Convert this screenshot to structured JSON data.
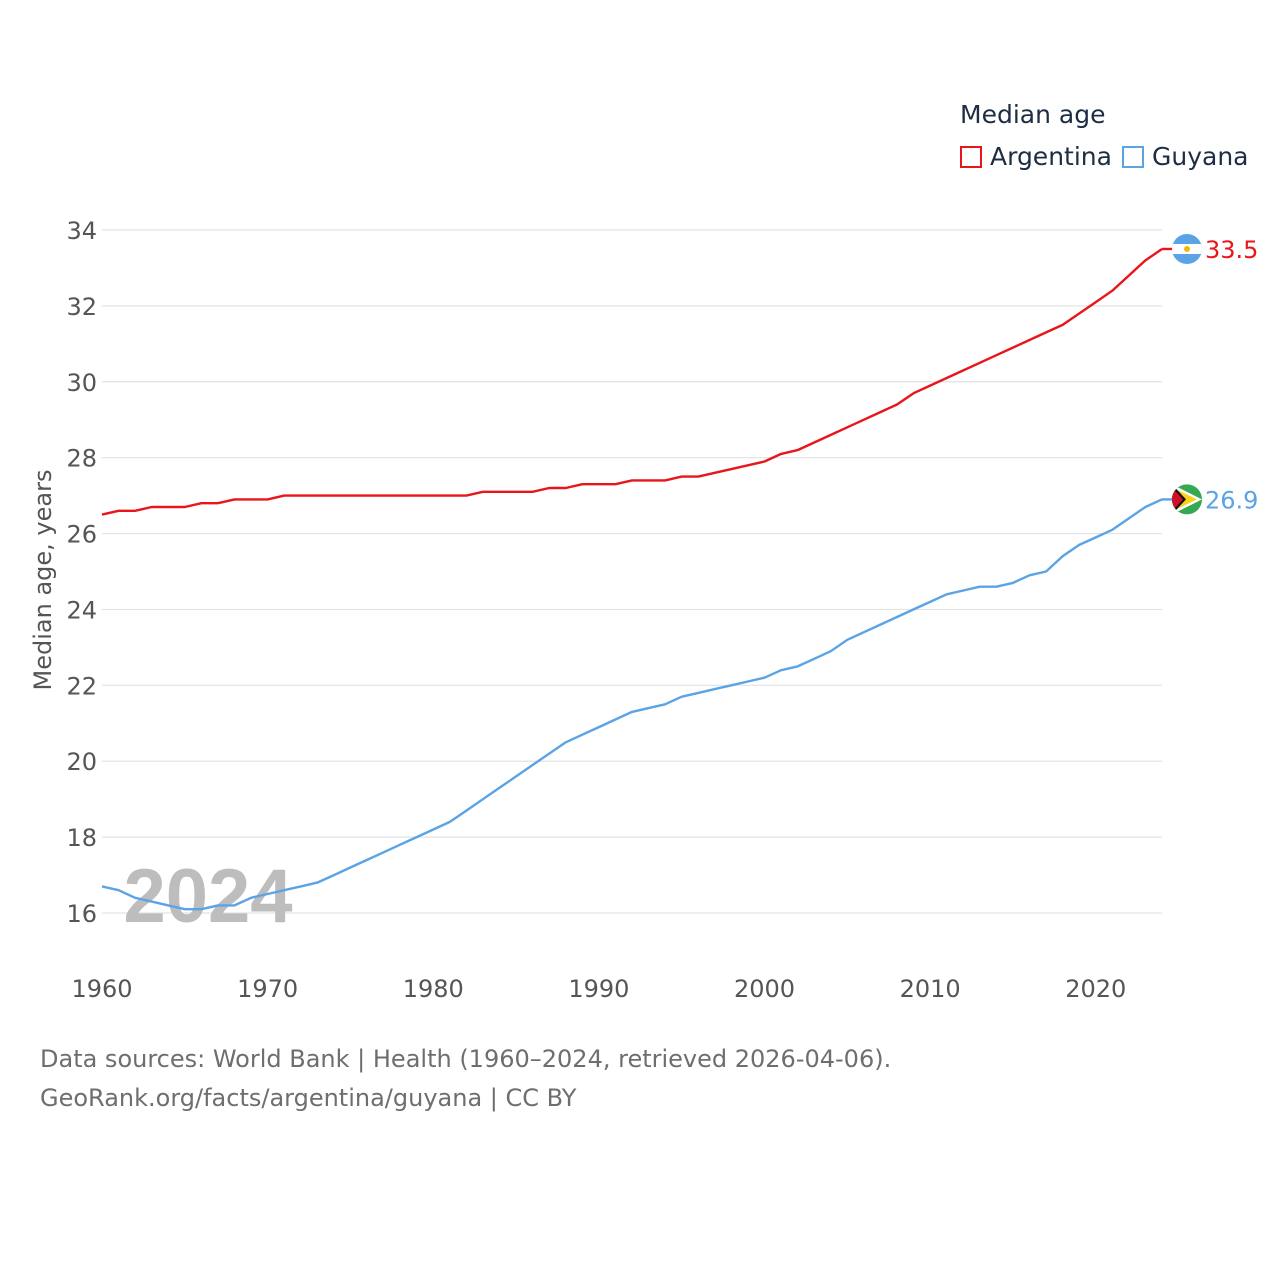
{
  "legend": {
    "title": "Median age",
    "items": [
      {
        "label": "Argentina",
        "color": "#e8151b"
      },
      {
        "label": "Guyana",
        "color": "#5aa4e6"
      }
    ]
  },
  "footer": {
    "line1": "Data sources: World Bank | Health (1960–2024, retrieved 2026-04-06).",
    "line2": "GeoRank.org/facts/argentina/guyana | CC BY"
  },
  "chart_data": {
    "type": "line",
    "title": "Median age",
    "xlabel": "",
    "ylabel": "Median age, years",
    "xlim": [
      1960,
      2024
    ],
    "ylim": [
      15,
      34.5
    ],
    "xticks": [
      1960,
      1970,
      1980,
      1990,
      2000,
      2010,
      2020
    ],
    "yticks": [
      16,
      18,
      20,
      22,
      24,
      26,
      28,
      30,
      32,
      34
    ],
    "year_label": "2024",
    "x": [
      1960,
      1961,
      1962,
      1963,
      1964,
      1965,
      1966,
      1967,
      1968,
      1969,
      1970,
      1971,
      1972,
      1973,
      1974,
      1975,
      1976,
      1977,
      1978,
      1979,
      1980,
      1981,
      1982,
      1983,
      1984,
      1985,
      1986,
      1987,
      1988,
      1989,
      1990,
      1991,
      1992,
      1993,
      1994,
      1995,
      1996,
      1997,
      1998,
      1999,
      2000,
      2001,
      2002,
      2003,
      2004,
      2005,
      2006,
      2007,
      2008,
      2009,
      2010,
      2011,
      2012,
      2013,
      2014,
      2015,
      2016,
      2017,
      2018,
      2019,
      2020,
      2021,
      2022,
      2023,
      2024
    ],
    "series": [
      {
        "name": "Argentina",
        "color": "#e8151b",
        "end_label": "33.5",
        "flag": "argentina-flag",
        "values": [
          26.5,
          26.6,
          26.6,
          26.7,
          26.7,
          26.7,
          26.8,
          26.8,
          26.9,
          26.9,
          26.9,
          27.0,
          27.0,
          27.0,
          27.0,
          27.0,
          27.0,
          27.0,
          27.0,
          27.0,
          27.0,
          27.0,
          27.0,
          27.1,
          27.1,
          27.1,
          27.1,
          27.2,
          27.2,
          27.3,
          27.3,
          27.3,
          27.4,
          27.4,
          27.4,
          27.5,
          27.5,
          27.6,
          27.7,
          27.8,
          27.9,
          28.1,
          28.2,
          28.4,
          28.6,
          28.8,
          29.0,
          29.2,
          29.4,
          29.7,
          29.9,
          30.1,
          30.3,
          30.5,
          30.7,
          30.9,
          31.1,
          31.3,
          31.5,
          31.8,
          32.1,
          32.4,
          32.8,
          33.2,
          33.5
        ]
      },
      {
        "name": "Guyana",
        "color": "#5aa4e6",
        "end_label": "26.9",
        "flag": "guyana-flag",
        "values": [
          16.7,
          16.6,
          16.4,
          16.3,
          16.2,
          16.1,
          16.1,
          16.2,
          16.2,
          16.4,
          16.5,
          16.6,
          16.7,
          16.8,
          17.0,
          17.2,
          17.4,
          17.6,
          17.8,
          18.0,
          18.2,
          18.4,
          18.7,
          19.0,
          19.3,
          19.6,
          19.9,
          20.2,
          20.5,
          20.7,
          20.9,
          21.1,
          21.3,
          21.4,
          21.5,
          21.7,
          21.8,
          21.9,
          22.0,
          22.1,
          22.2,
          22.4,
          22.5,
          22.7,
          22.9,
          23.2,
          23.4,
          23.6,
          23.8,
          24.0,
          24.2,
          24.4,
          24.5,
          24.6,
          24.6,
          24.7,
          24.9,
          25.0,
          25.4,
          25.7,
          25.9,
          26.1,
          26.4,
          26.7,
          26.9
        ]
      }
    ]
  }
}
